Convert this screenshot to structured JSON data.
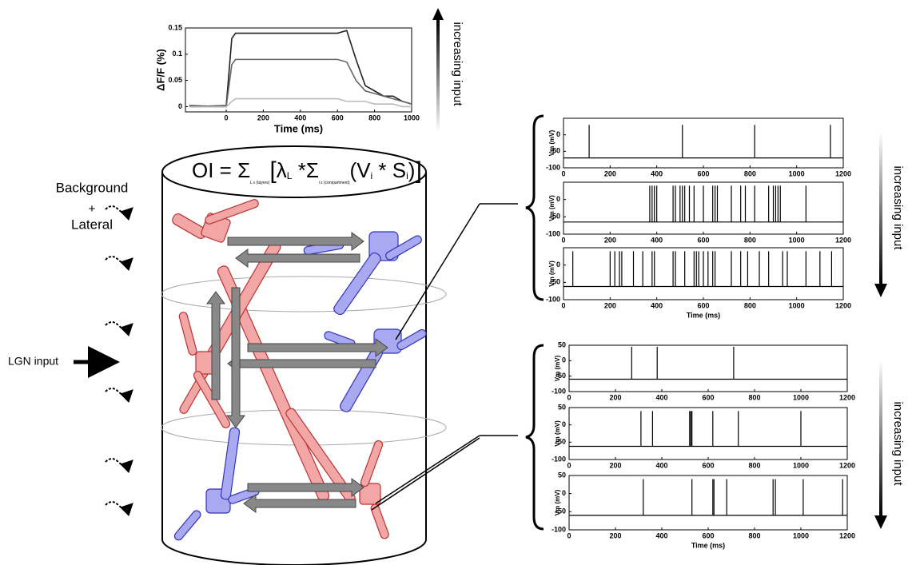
{
  "labels": {
    "background": "Background",
    "plus": "+",
    "lateral": "Lateral",
    "lgn": "LGN input",
    "increasing": [
      "increasing input",
      "increasing input",
      "increasing input"
    ]
  },
  "equation": {
    "lhs": "OI = ",
    "sum1": "Σ",
    "sum1_sub": "L ε (layers)",
    "lambda": "λ",
    "lambda_sub": "L",
    "times": " *",
    "sum2": "Σ",
    "sum2_sub": "i ε (compartment)",
    "v": "(V",
    "v_sub": "i",
    "s": " * S",
    "s_sub": "i",
    "close": ")"
  },
  "chart_data": [
    {
      "type": "line",
      "ylabel": "ΔF/F (%)",
      "xlabel": "Time (ms)",
      "xlim": [
        -220,
        1000
      ],
      "ylim": [
        -0.01,
        0.15
      ],
      "xticks": [
        0,
        200,
        400,
        600,
        800,
        1000
      ],
      "yticks": [
        0,
        0.05,
        0.1,
        0.15
      ],
      "x": [
        -200,
        -100,
        0,
        30,
        50,
        100,
        200,
        300,
        400,
        500,
        600,
        650,
        700,
        750,
        800,
        850,
        900,
        950,
        1000
      ],
      "series": [
        {
          "color": "#222222",
          "values": [
            0.002,
            0.001,
            0.002,
            0.13,
            0.14,
            0.14,
            0.14,
            0.14,
            0.14,
            0.14,
            0.14,
            0.145,
            0.09,
            0.04,
            0.03,
            0.02,
            0.02,
            0.01,
            0.005
          ]
        },
        {
          "color": "#666666",
          "values": [
            0,
            0,
            0,
            0.08,
            0.09,
            0.09,
            0.09,
            0.09,
            0.09,
            0.09,
            0.09,
            0.085,
            0.05,
            0.03,
            0.025,
            0.02,
            0.015,
            0.01,
            0.005
          ]
        },
        {
          "color": "#bbbbbb",
          "values": [
            0,
            0,
            0,
            0.01,
            0.015,
            0.015,
            0.015,
            0.015,
            0.015,
            0.015,
            0.015,
            0.01,
            0.01,
            0.01,
            0.005,
            0.005,
            0.005,
            0,
            0
          ]
        }
      ]
    },
    {
      "type": "spike",
      "ylabel": "Vm (mV)",
      "xlim": [
        0,
        1200
      ],
      "ylim": [
        -100,
        50
      ],
      "xticks": [
        0,
        200,
        400,
        600,
        800,
        1000,
        1200
      ],
      "yticks": [
        -100,
        -50,
        0
      ],
      "baseline": -70,
      "series": [
        {
          "color": "#000000",
          "x": [
            110,
            510,
            820,
            1145
          ],
          "values": [
            30,
            30,
            30,
            30
          ]
        }
      ]
    },
    {
      "type": "spike",
      "ylabel": "Vm (mV)",
      "xlim": [
        0,
        1200
      ],
      "ylim": [
        -100,
        50
      ],
      "xticks": [
        0,
        200,
        400,
        600,
        800,
        1000,
        1200
      ],
      "yticks": [
        -100,
        -50,
        0
      ],
      "baseline": -65,
      "series": [
        {
          "color": "#000000",
          "x": [
            370,
            380,
            390,
            400,
            470,
            480,
            500,
            510,
            520,
            540,
            560,
            600,
            640,
            650,
            660,
            720,
            760,
            780,
            820,
            880,
            900,
            910,
            920,
            930,
            1040
          ],
          "values": [
            40,
            40,
            40,
            40,
            40,
            40,
            40,
            40,
            40,
            40,
            40,
            40,
            40,
            40,
            40,
            40,
            40,
            40,
            40,
            40,
            40,
            40,
            40,
            40,
            40
          ]
        }
      ]
    },
    {
      "type": "spike",
      "ylabel": "Vm (mV)",
      "xlabel": "Time (ms)",
      "xlim": [
        0,
        1200
      ],
      "ylim": [
        -100,
        50
      ],
      "xticks": [
        0,
        200,
        400,
        600,
        800,
        1000,
        1200
      ],
      "yticks": [
        -100,
        -50,
        0
      ],
      "baseline": -62,
      "series": [
        {
          "color": "#000000",
          "x": [
            40,
            200,
            220,
            240,
            250,
            300,
            340,
            380,
            390,
            470,
            480,
            520,
            560,
            570,
            580,
            600,
            620,
            640,
            650,
            720,
            760,
            790,
            840,
            880,
            940,
            960,
            1040,
            1100,
            1150
          ],
          "values": [
            40,
            40,
            40,
            40,
            40,
            40,
            40,
            40,
            40,
            40,
            40,
            40,
            40,
            40,
            40,
            40,
            40,
            40,
            40,
            40,
            40,
            40,
            40,
            40,
            40,
            40,
            40,
            40,
            40
          ]
        }
      ]
    },
    {
      "type": "spike",
      "ylabel": "Vm (mV)",
      "xlim": [
        0,
        1200
      ],
      "ylim": [
        -100,
        50
      ],
      "xticks": [
        0,
        200,
        400,
        600,
        800,
        1000,
        1200
      ],
      "yticks": [
        -100,
        -50,
        0,
        50
      ],
      "baseline": -60,
      "series": [
        {
          "color": "#000000",
          "x": [
            270,
            380,
            710
          ],
          "values": [
            45,
            45,
            45
          ]
        }
      ]
    },
    {
      "type": "spike",
      "ylabel": "Vm (mV)",
      "xlim": [
        0,
        1200
      ],
      "ylim": [
        -100,
        50
      ],
      "xticks": [
        0,
        200,
        400,
        600,
        800,
        1000,
        1200
      ],
      "yticks": [
        -100,
        -50,
        0,
        50
      ],
      "baseline": -62,
      "series": [
        {
          "color": "#000000",
          "x": [
            310,
            360,
            520,
            525,
            530,
            620,
            730,
            1000
          ],
          "values": [
            40,
            40,
            40,
            40,
            40,
            40,
            40,
            40
          ]
        }
      ]
    },
    {
      "type": "spike",
      "ylabel": "Vm (mV)",
      "xlabel": "Time (ms)",
      "xlim": [
        0,
        1200
      ],
      "ylim": [
        -100,
        50
      ],
      "xticks": [
        0,
        200,
        400,
        600,
        800,
        1000,
        1200
      ],
      "yticks": [
        -100,
        -50,
        0,
        50
      ],
      "baseline": -60,
      "series": [
        {
          "color": "#000000",
          "x": [
            320,
            530,
            620,
            625,
            680,
            880,
            890,
            1010,
            1180
          ],
          "values": [
            40,
            40,
            40,
            40,
            40,
            40,
            40,
            40,
            40
          ]
        }
      ]
    }
  ]
}
